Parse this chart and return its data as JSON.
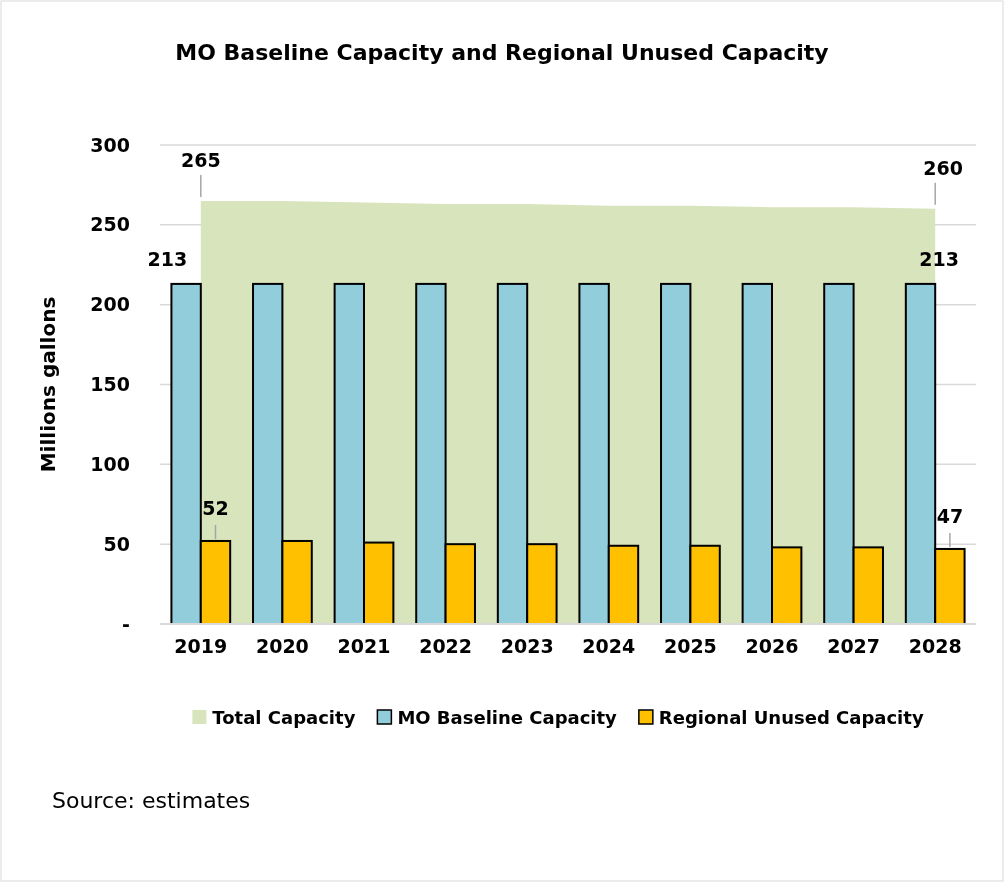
{
  "chart_data": {
    "type": "bar",
    "title": "MO Baseline Capacity and Regional Unused Capacity",
    "ylabel": "Millions gallons",
    "categories": [
      "2019",
      "2020",
      "2021",
      "2022",
      "2023",
      "2024",
      "2025",
      "2026",
      "2027",
      "2028"
    ],
    "series": [
      {
        "name": "Total Capacity",
        "type": "area",
        "color": "#d8e4bc",
        "values": [
          265,
          265,
          264,
          263,
          263,
          262,
          262,
          261,
          261,
          260
        ],
        "value_labels": [
          "265",
          null,
          null,
          null,
          null,
          null,
          null,
          null,
          null,
          "260"
        ]
      },
      {
        "name": "MO Baseline Capacity",
        "color": "#92cddc",
        "values": [
          213,
          213,
          213,
          213,
          213,
          213,
          213,
          213,
          213,
          213
        ],
        "value_labels": [
          "213",
          null,
          null,
          null,
          null,
          null,
          null,
          null,
          null,
          "213"
        ]
      },
      {
        "name": "Regional Unused Capacity",
        "color": "#ffc000",
        "values": [
          52,
          52,
          51,
          50,
          50,
          49,
          49,
          48,
          48,
          47
        ],
        "value_labels": [
          "52",
          null,
          null,
          null,
          null,
          null,
          null,
          null,
          null,
          "47"
        ]
      }
    ],
    "ylim": [
      0,
      300
    ],
    "yticks": [
      {
        "value": 0,
        "label": "-"
      },
      50,
      100,
      150,
      200,
      250,
      300
    ],
    "grid": "y",
    "legend": "bottom",
    "annotations": [
      "Source: estimates"
    ]
  }
}
